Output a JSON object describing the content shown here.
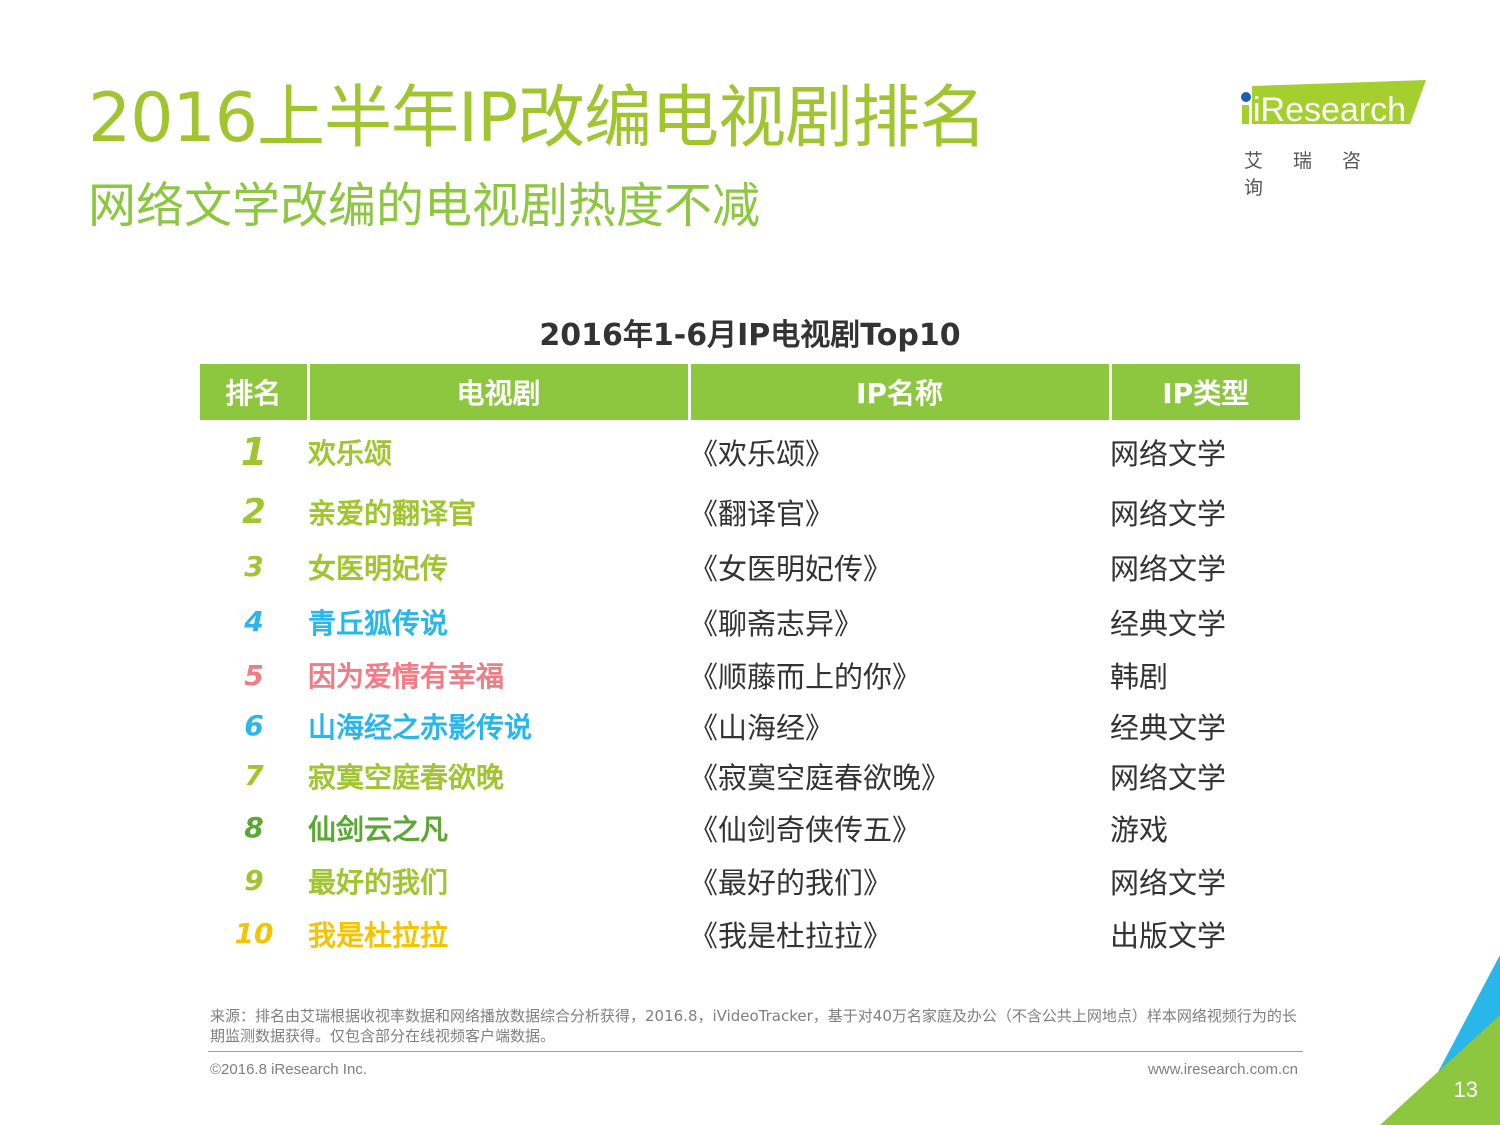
{
  "header": {
    "title": "2016上半年IP改编电视剧排名",
    "subtitle": "网络文学改编的电视剧热度不减"
  },
  "logo": {
    "wordmark": "iResearch",
    "chinese": "艾瑞咨询",
    "colors": {
      "brand_green": "#a4cf2e",
      "dot_blue": "#1a5fae"
    }
  },
  "table": {
    "title": "2016年1-6月IP电视剧Top10",
    "headers": [
      "排名",
      "电视剧",
      "IP名称",
      "IP类型"
    ],
    "header_color": "#8dc63f",
    "rows": [
      {
        "rank": "1",
        "show": "欢乐颂",
        "ip": "《欢乐颂》",
        "type": "网络文学",
        "color": "#a1c52f"
      },
      {
        "rank": "2",
        "show": "亲爱的翻译官",
        "ip": "《翻译官》",
        "type": "网络文学",
        "color": "#a1c52f"
      },
      {
        "rank": "3",
        "show": "女医明妃传",
        "ip": "《女医明妃传》",
        "type": "网络文学",
        "color": "#a1c52f"
      },
      {
        "rank": "4",
        "show": "青丘狐传说",
        "ip": "《聊斋志异》",
        "type": "经典文学",
        "color": "#29b6e8"
      },
      {
        "rank": "5",
        "show": "因为爱情有幸福",
        "ip": "《顺藤而上的你》",
        "type": "韩剧",
        "color": "#ef7d86"
      },
      {
        "rank": "6",
        "show": "山海经之赤影传说",
        "ip": "《山海经》",
        "type": "经典文学",
        "color": "#29b6e8"
      },
      {
        "rank": "7",
        "show": "寂寞空庭春欲晚",
        "ip": "《寂寞空庭春欲晚》",
        "type": "网络文学",
        "color": "#a1c52f"
      },
      {
        "rank": "8",
        "show": "仙剑云之凡",
        "ip": "《仙剑奇侠传五》",
        "type": "游戏",
        "color": "#5aa832"
      },
      {
        "rank": "9",
        "show": "最好的我们",
        "ip": "《最好的我们》",
        "type": "网络文学",
        "color": "#a1c52f"
      },
      {
        "rank": "10",
        "show": "我是杜拉拉",
        "ip": "《我是杜拉拉》",
        "type": "出版文学",
        "color": "#f5c400"
      }
    ]
  },
  "footer": {
    "source": "来源：排名由艾瑞根据收视率数据和网络播放数据综合分析获得，2016.8，iVideoTracker，基于对40万名家庭及办公（不含公共上网地点）样本网络视频行为的长期监测数据获得。仅包含部分在线视频客户端数据。",
    "copyright": "©2016.8 iResearch Inc.",
    "website": "www.iresearch.com.cn",
    "page_number": "13"
  }
}
